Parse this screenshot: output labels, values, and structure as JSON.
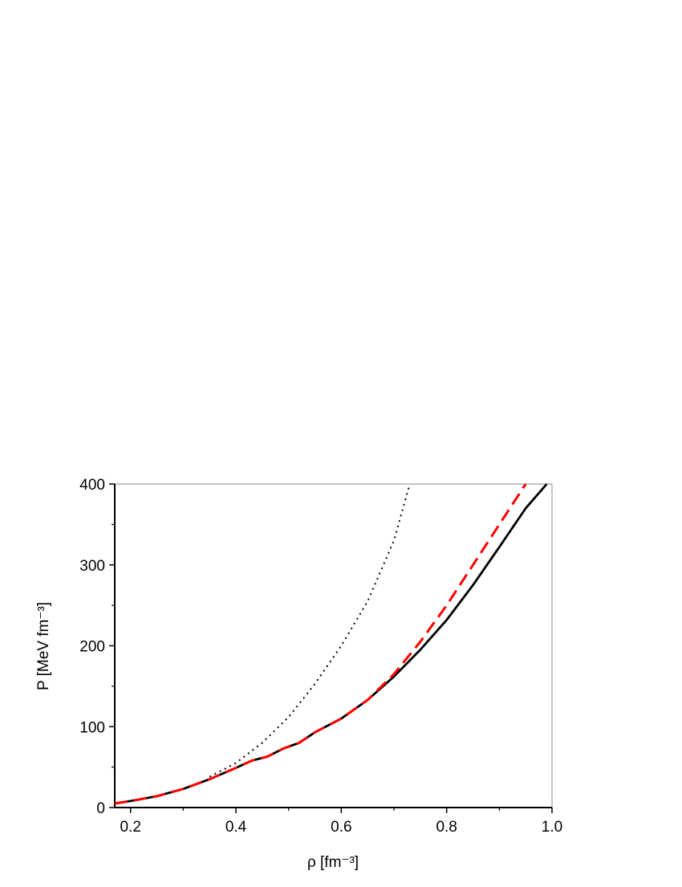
{
  "chart_data": {
    "type": "line",
    "xlabel": "ρ [fm⁻³]",
    "ylabel": "P [MeV fm⁻³]",
    "xlim": [
      0.17,
      1.0
    ],
    "ylim": [
      0,
      400
    ],
    "xticks": [
      0.2,
      0.4,
      0.6,
      0.8,
      {
        "value": 1,
        "label": "1.0"
      }
    ],
    "xminorticks": [
      0.3,
      0.5,
      0.7,
      0.9
    ],
    "yticks": [
      0,
      100,
      200,
      300,
      400
    ],
    "yminorticks": [
      50,
      150,
      250,
      350
    ],
    "series": [
      {
        "color": "#000000",
        "style": "solid",
        "x": [
          0.17,
          0.2,
          0.25,
          0.3,
          0.35,
          0.4,
          0.43,
          0.46,
          0.49,
          0.52,
          0.55,
          0.6,
          0.65,
          0.7,
          0.75,
          0.8,
          0.85,
          0.9,
          0.95,
          0.99
        ],
        "values": [
          5,
          8,
          14,
          23,
          35,
          49,
          58,
          63,
          73,
          80,
          93,
          110,
          133,
          162,
          195,
          232,
          275,
          322,
          370,
          400
        ]
      },
      {
        "color": "#ff0000",
        "style": "dashed",
        "x": [
          0.17,
          0.2,
          0.25,
          0.3,
          0.35,
          0.4,
          0.43,
          0.46,
          0.49,
          0.52,
          0.55,
          0.6,
          0.65,
          0.7,
          0.75,
          0.8,
          0.85,
          0.9,
          0.95
        ],
        "values": [
          5,
          8,
          14,
          23,
          35,
          49,
          58,
          63,
          73,
          80,
          93,
          110,
          133,
          165,
          205,
          250,
          300,
          350,
          400
        ]
      },
      {
        "color": "#000000",
        "style": "dotted",
        "x": [
          0.35,
          0.4,
          0.45,
          0.5,
          0.55,
          0.6,
          0.65,
          0.7,
          0.73
        ],
        "values": [
          38,
          55,
          80,
          112,
          153,
          200,
          255,
          330,
          400
        ]
      }
    ]
  }
}
